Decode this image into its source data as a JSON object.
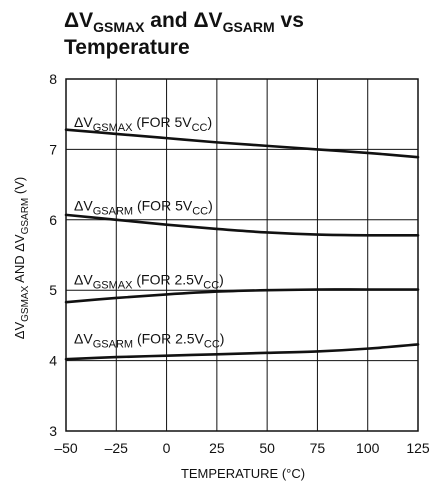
{
  "chart_data": {
    "type": "line",
    "title": {
      "line1": {
        "delta": "ΔV",
        "sub1": "GSMAX",
        "mid": " and ΔV",
        "sub2": "GSARM",
        "end": " vs"
      },
      "line2": "Temperature"
    },
    "xlabel": "TEMPERATURE (°C)",
    "ylabel": {
      "p1": "ΔV",
      "sub1": "GSMAX",
      "p2": " AND ΔV",
      "sub2": "GSARM",
      "p3": " (V)"
    },
    "xlim": [
      -50,
      125
    ],
    "ylim": [
      3,
      8
    ],
    "xticks": [
      -50,
      -25,
      0,
      25,
      50,
      75,
      100,
      125
    ],
    "xtick_labels": [
      "–50",
      "–25",
      "0",
      "25",
      "50",
      "75",
      "100",
      "125"
    ],
    "yticks": [
      3,
      4,
      5,
      6,
      7,
      8
    ],
    "ytick_labels": [
      "3",
      "4",
      "5",
      "6",
      "7",
      "8"
    ],
    "grid": true,
    "x": [
      -50,
      -25,
      0,
      25,
      50,
      75,
      100,
      125
    ],
    "series": [
      {
        "name": "ΔVGSMAX (FOR 5VCC)",
        "label": {
          "p1": "ΔV",
          "sub1": "GSMAX",
          "p2": " (FOR 5V",
          "sub2": "CC",
          "p3": ")"
        },
        "label_anchor": [
          -46,
          7.32
        ],
        "values": [
          7.28,
          7.22,
          7.16,
          7.1,
          7.05,
          7.0,
          6.95,
          6.89
        ]
      },
      {
        "name": "ΔVGSARM (FOR 5VCC)",
        "label": {
          "p1": "ΔV",
          "sub1": "GSARM",
          "p2": " (FOR 5V",
          "sub2": "CC",
          "p3": ")"
        },
        "label_anchor": [
          -46,
          6.13
        ],
        "values": [
          6.07,
          6.0,
          5.93,
          5.87,
          5.82,
          5.79,
          5.78,
          5.78
        ]
      },
      {
        "name": "ΔVGSMAX (FOR 2.5VCC)",
        "label": {
          "p1": "ΔV",
          "sub1": "GSMAX",
          "p2": " (FOR 2.5V",
          "sub2": "CC",
          "p3": ")"
        },
        "label_anchor": [
          -46,
          5.08
        ],
        "values": [
          4.83,
          4.89,
          4.94,
          4.98,
          5.0,
          5.01,
          5.01,
          5.01
        ]
      },
      {
        "name": "ΔVGSARM (FOR 2.5VCC)",
        "label": {
          "p1": "ΔV",
          "sub1": "GSARM",
          "p2": " (FOR 2.5V",
          "sub2": "CC",
          "p3": ")"
        },
        "label_anchor": [
          -46,
          4.24
        ],
        "values": [
          4.02,
          4.05,
          4.07,
          4.09,
          4.11,
          4.13,
          4.17,
          4.23
        ]
      }
    ]
  }
}
